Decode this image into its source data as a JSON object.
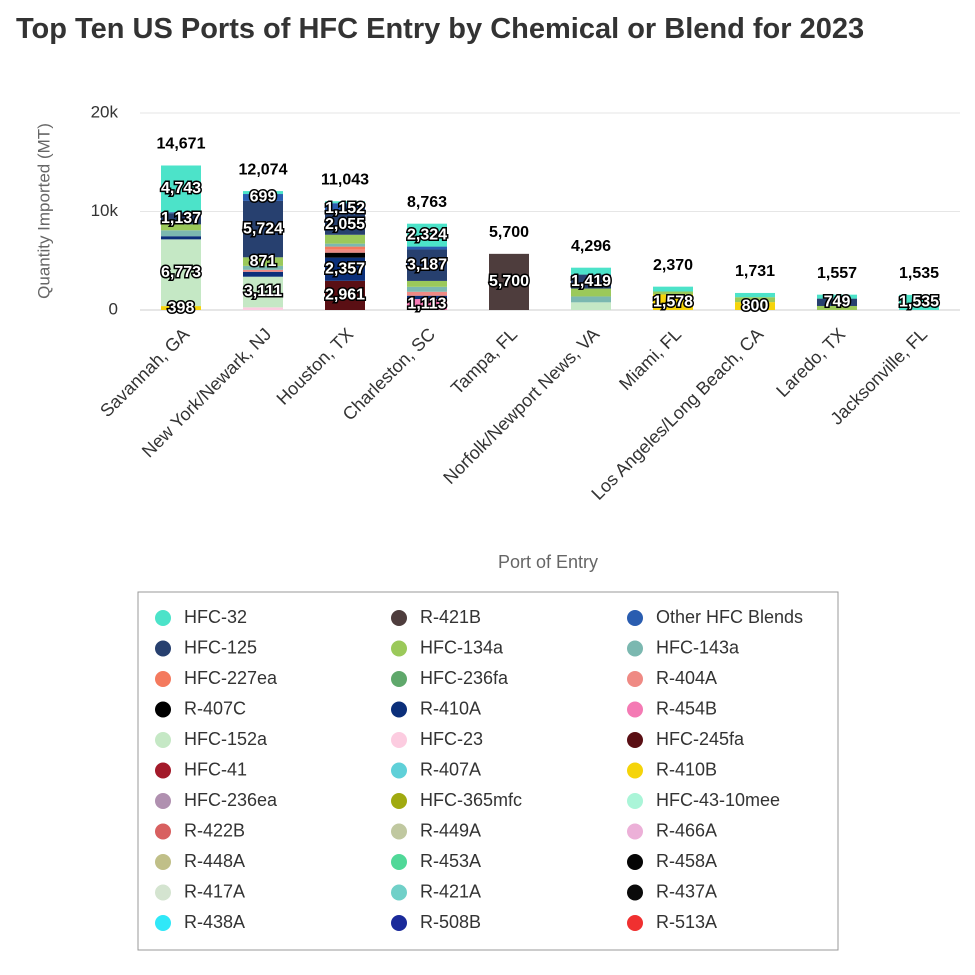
{
  "chart_data": {
    "type": "stacked_bar",
    "title": "Top Ten US Ports of HFC Entry by Chemical or Blend for 2023",
    "x_label": "Port of Entry",
    "y_label": "Quantity Imported (MT)",
    "categories": [
      "Savannah, GA",
      "New York/Newark, NJ",
      "Houston, TX",
      "Charleston, SC",
      "Tampa, FL",
      "Norfolk/Newport News, VA",
      "Miami, FL",
      "Los Angeles/Long Beach, CA",
      "Laredo, TX",
      "Jacksonville, FL"
    ],
    "totals": [
      14671,
      12074,
      11043,
      8763,
      5700,
      4296,
      2370,
      1731,
      1557,
      1535
    ],
    "total_labels": [
      "14,671",
      "12,074",
      "11,043",
      "8,763",
      "5,700",
      "4,296",
      "2,370",
      "1,731",
      "1,557",
      "1,535"
    ],
    "ylim": [
      0,
      20000
    ],
    "yticks": [
      0,
      {
        "value": 10000,
        "label": "10k"
      },
      {
        "value": 20000,
        "label": "20k"
      }
    ],
    "grid": true,
    "series": [
      {
        "name": "HFC-32",
        "color": "#4ce3c9",
        "values": [
          4743,
          300,
          200,
          2324,
          null,
          700,
          492,
          431,
          400,
          1535
        ],
        "value_labels": [
          "4,743",
          null,
          null,
          "2,324",
          null,
          null,
          null,
          null,
          null,
          "1,535"
        ]
      },
      {
        "name": "R-421B",
        "color": "#4e3d3d",
        "values": [
          null,
          null,
          null,
          null,
          5700,
          null,
          null,
          null,
          null,
          null
        ],
        "value_labels": [
          null,
          null,
          null,
          null,
          "5,700",
          null,
          null,
          null,
          null,
          null
        ]
      },
      {
        "name": "Other HFC Blends",
        "color": "#2a5db0",
        "values": [
          100,
          699,
          1152,
          300,
          null,
          null,
          null,
          null,
          null,
          null
        ],
        "value_labels": [
          null,
          "699",
          "1,152",
          null,
          null,
          null,
          null,
          null,
          null,
          null
        ]
      },
      {
        "name": "HFC-125",
        "color": "#27406f",
        "values": [
          1137,
          5724,
          2055,
          3187,
          null,
          1419,
          null,
          null,
          749,
          null
        ],
        "value_labels": [
          "1,137",
          "5,724",
          "2,055",
          "3,187",
          null,
          "1,419",
          null,
          null,
          "749",
          null
        ]
      },
      {
        "name": "HFC-134a",
        "color": "#9bc95a",
        "values": [
          600,
          871,
          900,
          600,
          null,
          800,
          300,
          500,
          408,
          null
        ],
        "value_labels": [
          null,
          "871",
          null,
          null,
          null,
          null,
          null,
          null,
          null,
          null
        ]
      },
      {
        "name": "HFC-143a",
        "color": "#7bb8b0",
        "values": [
          600,
          400,
          300,
          500,
          null,
          600,
          null,
          null,
          null,
          null
        ]
      },
      {
        "name": "HFC-227ea",
        "color": "#f47a5e",
        "values": [
          null,
          null,
          318,
          null,
          null,
          null,
          null,
          null,
          null,
          null
        ]
      },
      {
        "name": "HFC-236fa",
        "color": "#5fa86b",
        "values": [
          null,
          null,
          null,
          null,
          null,
          null,
          null,
          null,
          null,
          null
        ]
      },
      {
        "name": "R-404A",
        "color": "#ef8a84",
        "values": [
          null,
          200,
          300,
          400,
          null,
          null,
          null,
          null,
          null,
          null
        ]
      },
      {
        "name": "R-407C",
        "color": "#000000",
        "values": [
          null,
          null,
          500,
          null,
          null,
          null,
          null,
          null,
          null,
          null
        ]
      },
      {
        "name": "R-410A",
        "color": "#0b2f7a",
        "values": [
          320,
          500,
          2357,
          339,
          null,
          null,
          null,
          null,
          null,
          null
        ],
        "value_labels": [
          null,
          null,
          "2,357",
          null,
          null,
          null,
          null,
          null,
          null,
          null
        ]
      },
      {
        "name": "R-454B",
        "color": "#f47ab4",
        "values": [
          null,
          null,
          null,
          1113,
          null,
          null,
          null,
          null,
          null,
          null
        ],
        "value_labels": [
          null,
          null,
          null,
          "1,113",
          null,
          null,
          null,
          null,
          null,
          null
        ]
      },
      {
        "name": "HFC-152a",
        "color": "#c5e8c5",
        "values": [
          6773,
          3111,
          null,
          null,
          null,
          777,
          null,
          null,
          null,
          null
        ],
        "value_labels": [
          "6,773",
          "3,111",
          null,
          null,
          null,
          null,
          null,
          null,
          null,
          null
        ]
      },
      {
        "name": "HFC-23",
        "color": "#fccce0",
        "values": [
          null,
          269,
          null,
          null,
          null,
          null,
          null,
          null,
          null,
          null
        ]
      },
      {
        "name": "HFC-245fa",
        "color": "#5a0f14",
        "values": [
          null,
          null,
          2961,
          null,
          null,
          null,
          null,
          null,
          null,
          null
        ],
        "value_labels": [
          null,
          null,
          "2,961",
          null,
          null,
          null,
          null,
          null,
          null,
          null
        ]
      },
      {
        "name": "HFC-41",
        "color": "#a31a2a",
        "values": [
          null,
          null,
          null,
          null,
          null,
          null,
          null,
          null,
          null,
          null
        ]
      },
      {
        "name": "R-407A",
        "color": "#5fd0d8",
        "values": [
          null,
          null,
          null,
          null,
          null,
          null,
          null,
          null,
          null,
          null
        ]
      },
      {
        "name": "R-410B",
        "color": "#f5d40a",
        "values": [
          398,
          null,
          null,
          null,
          null,
          null,
          1578,
          800,
          null,
          null
        ],
        "value_labels": [
          "398",
          null,
          null,
          null,
          null,
          null,
          "1,578",
          "800",
          null,
          null
        ]
      },
      {
        "name": "HFC-236ea",
        "color": "#b090b0",
        "values": [
          null,
          null,
          null,
          null,
          null,
          null,
          null,
          null,
          null,
          null
        ]
      },
      {
        "name": "HFC-365mfc",
        "color": "#a0aa10",
        "values": [
          null,
          null,
          null,
          null,
          null,
          null,
          null,
          null,
          null,
          null
        ]
      },
      {
        "name": "HFC-43-10mee",
        "color": "#aaf5d8",
        "values": [
          null,
          null,
          null,
          null,
          null,
          null,
          null,
          null,
          null,
          null
        ]
      },
      {
        "name": "R-422B",
        "color": "#d86060",
        "values": [
          null,
          null,
          null,
          null,
          null,
          null,
          null,
          null,
          null,
          null
        ]
      },
      {
        "name": "R-449A",
        "color": "#c0c8a0",
        "values": [
          null,
          null,
          null,
          null,
          null,
          null,
          null,
          null,
          null,
          null
        ]
      },
      {
        "name": "R-466A",
        "color": "#ecb0d8",
        "values": [
          null,
          null,
          null,
          null,
          null,
          null,
          null,
          null,
          null,
          null
        ]
      },
      {
        "name": "R-448A",
        "color": "#c0bf88",
        "values": [
          null,
          null,
          null,
          null,
          null,
          null,
          null,
          null,
          null,
          null
        ]
      },
      {
        "name": "R-453A",
        "color": "#50d898",
        "values": [
          null,
          null,
          null,
          null,
          null,
          null,
          null,
          null,
          null,
          null
        ]
      },
      {
        "name": "R-458A",
        "color": "#050505",
        "values": [
          null,
          null,
          null,
          null,
          null,
          null,
          null,
          null,
          null,
          null
        ]
      },
      {
        "name": "R-417A",
        "color": "#d4e4d0",
        "values": [
          null,
          null,
          null,
          null,
          null,
          null,
          null,
          null,
          null,
          null
        ]
      },
      {
        "name": "R-421A",
        "color": "#70d0c8",
        "values": [
          null,
          null,
          null,
          null,
          null,
          null,
          null,
          null,
          null,
          null
        ]
      },
      {
        "name": "R-437A",
        "color": "#0a0a0a",
        "values": [
          null,
          null,
          null,
          null,
          null,
          null,
          null,
          null,
          null,
          null
        ]
      },
      {
        "name": "R-438A",
        "color": "#30e8f8",
        "values": [
          null,
          null,
          null,
          null,
          null,
          null,
          null,
          null,
          null,
          null
        ]
      },
      {
        "name": "R-508B",
        "color": "#1a2a9a",
        "values": [
          null,
          null,
          null,
          null,
          null,
          null,
          null,
          null,
          null,
          null
        ]
      },
      {
        "name": "R-513A",
        "color": "#f03030",
        "values": [
          null,
          null,
          null,
          null,
          null,
          null,
          null,
          null,
          null,
          null
        ]
      }
    ]
  }
}
